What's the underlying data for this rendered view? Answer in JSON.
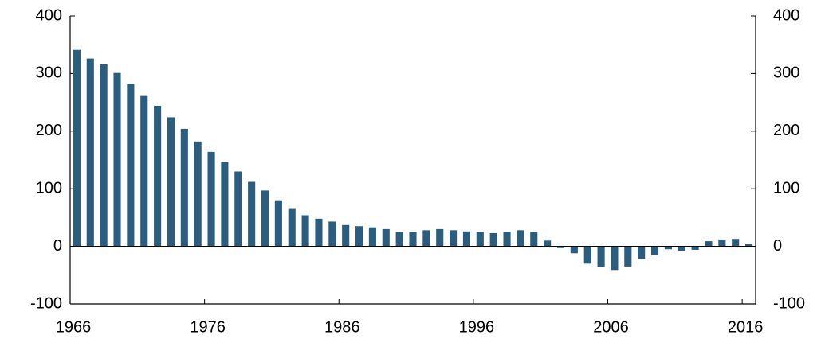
{
  "chart_data": {
    "type": "bar",
    "categories": [
      "1966",
      null,
      null,
      null,
      null,
      null,
      null,
      null,
      null,
      null,
      "1976",
      null,
      null,
      null,
      null,
      null,
      null,
      null,
      null,
      null,
      "1986",
      null,
      null,
      null,
      null,
      null,
      null,
      null,
      null,
      null,
      "1996",
      null,
      null,
      null,
      null,
      null,
      null,
      null,
      null,
      null,
      "2006",
      null,
      null,
      null,
      null,
      null,
      null,
      null,
      null,
      null,
      "2016"
    ],
    "values": [
      341,
      326,
      316,
      301,
      282,
      261,
      244,
      224,
      204,
      182,
      164,
      146,
      130,
      112,
      97,
      80,
      65,
      54,
      48,
      43,
      37,
      35,
      33,
      30,
      25,
      25,
      28,
      30,
      28,
      26,
      25,
      23,
      25,
      28,
      25,
      10,
      -3,
      -12,
      -30,
      -36,
      -41,
      -35,
      -22,
      -15,
      -5,
      -8,
      -6,
      9,
      12,
      13,
      4
    ],
    "color": "#2b5e7e",
    "ylim": [
      -100,
      400
    ],
    "yticks": [
      -100,
      0,
      100,
      200,
      300,
      400
    ],
    "y2lim": [
      -100,
      400
    ],
    "y2ticks": [
      -100,
      0,
      100,
      200,
      300,
      400
    ]
  }
}
